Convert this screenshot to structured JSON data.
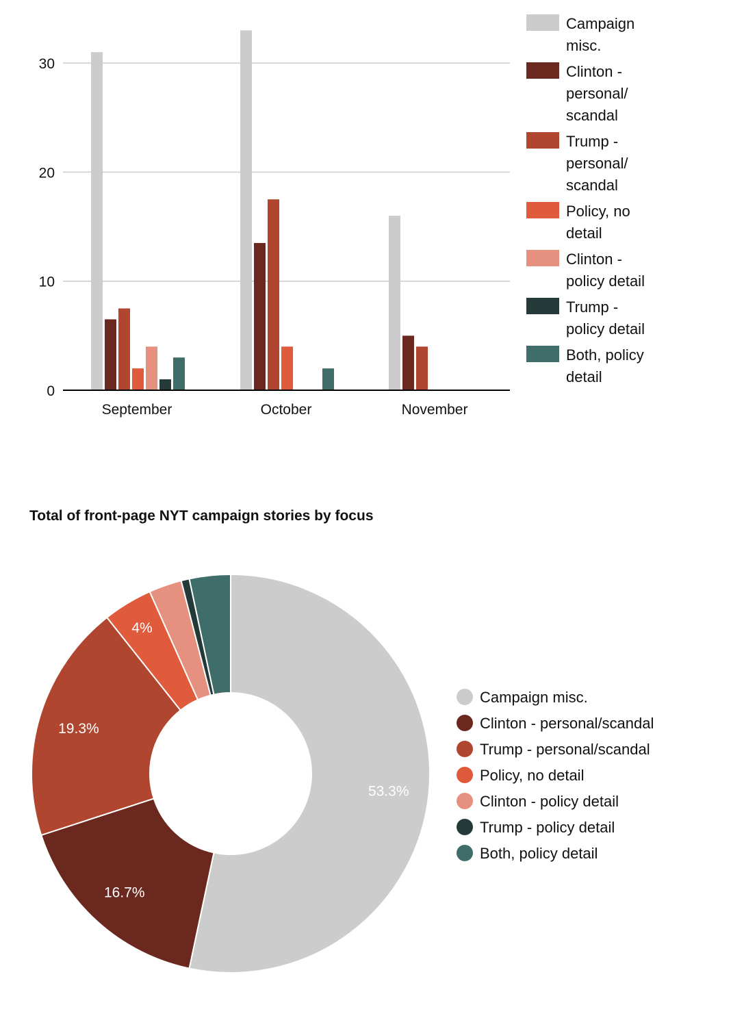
{
  "colors": {
    "Campaign misc.": "#cccccc",
    "Clinton - personal/scandal": "#6b281e",
    "Trump - personal/scandal": "#b0462f",
    "Policy, no detail": "#e05a3c",
    "Clinton - policy detail": "#e69080",
    "Trump - policy detail": "#233a38",
    "Both, policy detail": "#3f6e6a"
  },
  "chart_data": [
    {
      "type": "bar",
      "title": "",
      "xlabel": "",
      "ylabel": "",
      "categories": [
        "September",
        "October",
        "November"
      ],
      "ylim": [
        0,
        33
      ],
      "yticks": [
        "0",
        "10",
        "20",
        "30"
      ],
      "grid": true,
      "legend_placement": "right",
      "series": [
        {
          "name": "Campaign misc.",
          "legend_lines": [
            "Campaign",
            "misc."
          ],
          "values": [
            31,
            33,
            16
          ]
        },
        {
          "name": "Clinton - personal/scandal",
          "legend_lines": [
            "Clinton -",
            "personal/",
            "scandal"
          ],
          "values": [
            6.5,
            13.5,
            5
          ]
        },
        {
          "name": "Trump - personal/scandal",
          "legend_lines": [
            "Trump -",
            "personal/",
            "scandal"
          ],
          "values": [
            7.5,
            17.5,
            4
          ]
        },
        {
          "name": "Policy, no detail",
          "legend_lines": [
            "Policy, no",
            "detail"
          ],
          "values": [
            2,
            4,
            0
          ]
        },
        {
          "name": "Clinton - policy detail",
          "legend_lines": [
            "Clinton -",
            "policy detail"
          ],
          "values": [
            4,
            0,
            0
          ]
        },
        {
          "name": "Trump - policy detail",
          "legend_lines": [
            "Trump -",
            "policy detail"
          ],
          "values": [
            1,
            0,
            0
          ]
        },
        {
          "name": "Both, policy detail",
          "legend_lines": [
            "Both, policy",
            "detail"
          ],
          "values": [
            3,
            2,
            0
          ]
        }
      ]
    },
    {
      "type": "pie",
      "title": "Total of front-page NYT campaign stories by focus",
      "legend_placement": "right",
      "slices": [
        {
          "name": "Campaign misc.",
          "value": 80,
          "label": "53.3%"
        },
        {
          "name": "Clinton - personal/scandal",
          "value": 25,
          "label": "16.7%"
        },
        {
          "name": "Trump - personal/scandal",
          "value": 29,
          "label": "19.3%"
        },
        {
          "name": "Policy, no detail",
          "value": 6,
          "label": "4%"
        },
        {
          "name": "Clinton - policy detail",
          "value": 4,
          "label": ""
        },
        {
          "name": "Trump - policy detail",
          "value": 1,
          "label": ""
        },
        {
          "name": "Both, policy detail",
          "value": 5,
          "label": ""
        }
      ]
    }
  ]
}
